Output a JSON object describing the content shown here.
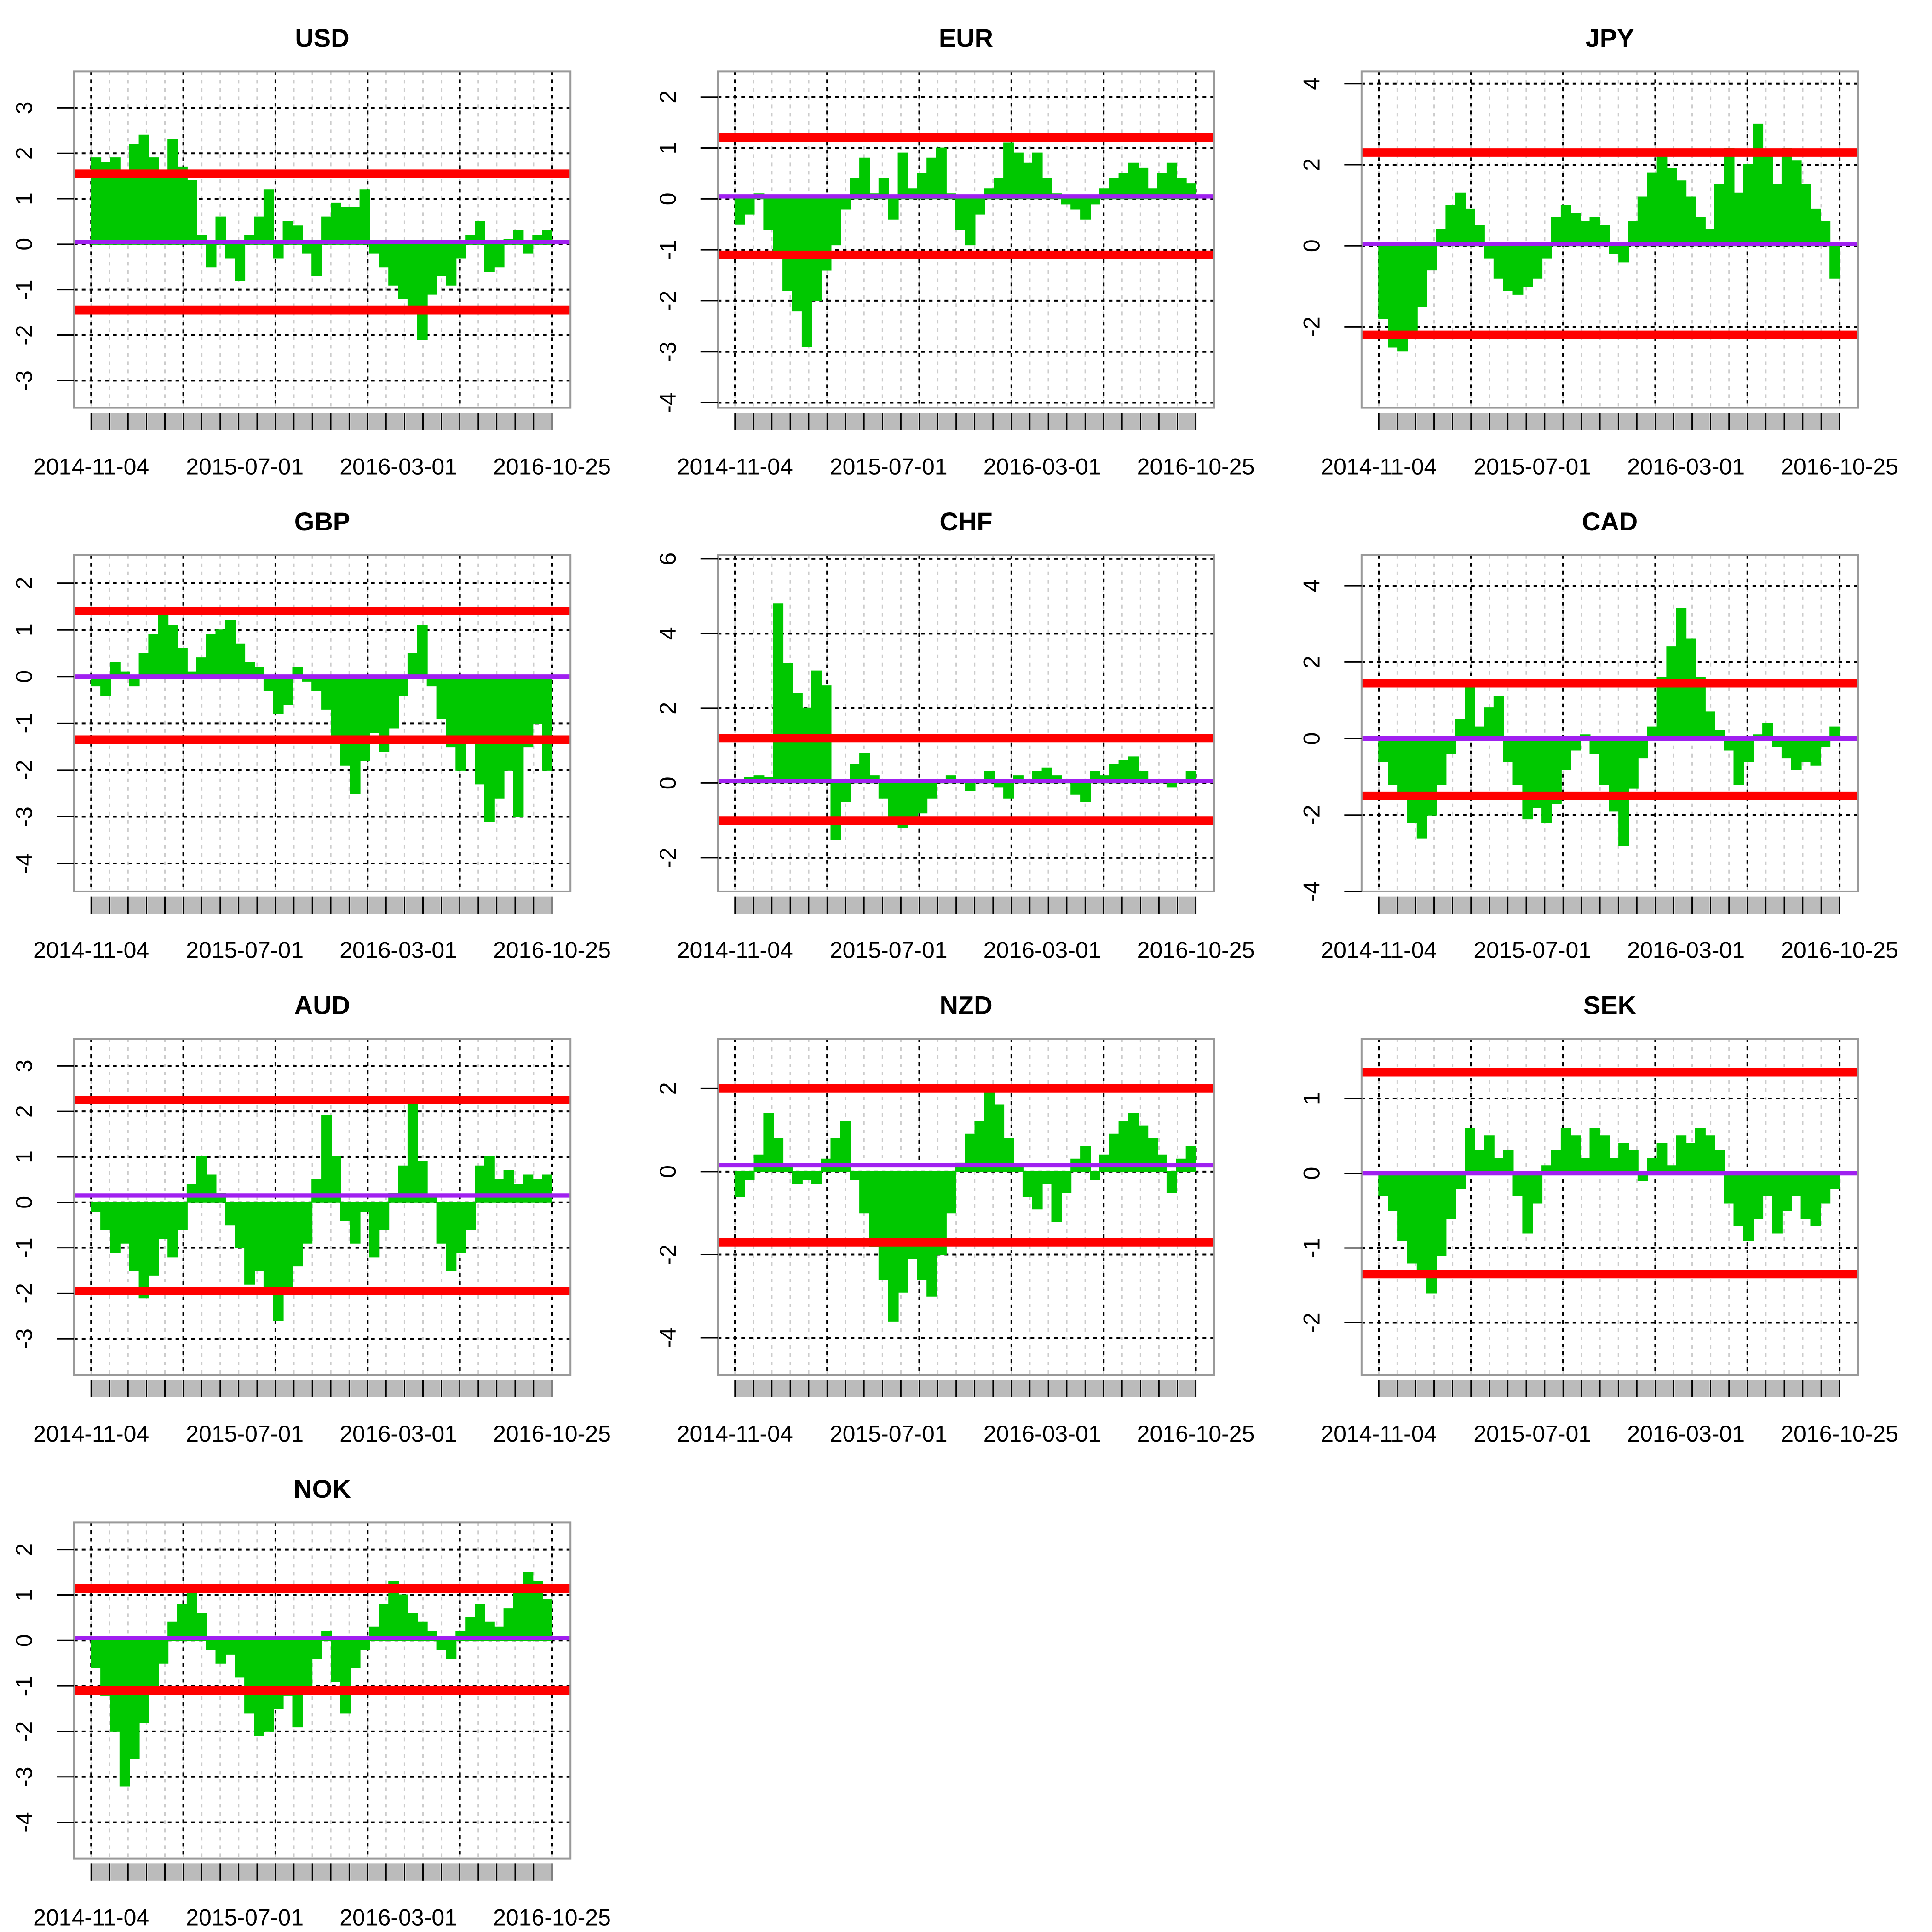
{
  "chart_data": [
    {
      "type": "area",
      "title": "USD",
      "x_tick_labels": [
        "2014-11-04",
        "2015-07-01",
        "2016-03-01",
        "2016-10-25"
      ],
      "y_ticks": [
        -3,
        -2,
        -1,
        0,
        1,
        2,
        3
      ],
      "ylim": [
        -3.6,
        3.8
      ],
      "grid": true,
      "reference_lines": {
        "upper": 1.55,
        "lower": -1.45,
        "mean": 0.05
      },
      "series": [
        {
          "values": [
            1.9,
            1.8,
            1.9,
            1.6,
            2.2,
            2.4,
            1.9,
            1.6,
            2.3,
            1.7,
            1.4,
            0.2,
            -0.5,
            0.6,
            -0.3,
            -0.8,
            0.2,
            0.6,
            1.2,
            -0.3,
            0.5,
            0.4,
            -0.2,
            -0.7,
            0.6,
            0.9,
            0.8,
            0.8,
            1.2,
            -0.2,
            -0.5,
            -0.9,
            -1.2,
            -1.4,
            -2.1,
            -1.1,
            -0.7,
            -0.9,
            -0.3,
            0.2,
            0.5,
            -0.6,
            -0.5,
            0.1,
            0.3,
            -0.2,
            0.2,
            0.3
          ]
        }
      ]
    },
    {
      "type": "area",
      "title": "EUR",
      "x_tick_labels": [
        "2014-11-04",
        "2015-07-01",
        "2016-03-01",
        "2016-10-25"
      ],
      "y_ticks": [
        -4,
        -3,
        -2,
        -1,
        0,
        1,
        2
      ],
      "ylim": [
        -4.1,
        2.5
      ],
      "grid": true,
      "reference_lines": {
        "upper": 1.2,
        "lower": -1.1,
        "mean": 0.05
      },
      "series": [
        {
          "values": [
            -0.5,
            -0.3,
            0.1,
            -0.6,
            -1.1,
            -1.8,
            -2.2,
            -2.9,
            -2.0,
            -1.4,
            -0.9,
            -0.2,
            0.4,
            0.8,
            0.1,
            0.4,
            -0.4,
            0.9,
            0.2,
            0.5,
            0.8,
            1.0,
            0.1,
            -0.6,
            -0.9,
            -0.3,
            0.2,
            0.4,
            1.1,
            0.9,
            0.7,
            0.9,
            0.4,
            0.1,
            -0.1,
            -0.2,
            -0.4,
            -0.1,
            0.2,
            0.4,
            0.5,
            0.7,
            0.6,
            0.2,
            0.5,
            0.7,
            0.4,
            0.3
          ]
        }
      ]
    },
    {
      "type": "area",
      "title": "JPY",
      "x_tick_labels": [
        "2014-11-04",
        "2015-07-01",
        "2016-03-01",
        "2016-10-25"
      ],
      "y_ticks": [
        -2,
        0,
        2,
        4
      ],
      "ylim": [
        -4.0,
        4.3
      ],
      "grid": true,
      "reference_lines": {
        "upper": 2.3,
        "lower": -2.2,
        "mean": 0.05
      },
      "series": [
        {
          "values": [
            -1.8,
            -2.5,
            -2.6,
            -2.2,
            -1.5,
            -0.6,
            0.4,
            1.0,
            1.3,
            0.9,
            0.5,
            -0.3,
            -0.8,
            -1.1,
            -1.2,
            -1.0,
            -0.8,
            -0.3,
            0.7,
            1.0,
            0.8,
            0.6,
            0.7,
            0.5,
            -0.2,
            -0.4,
            0.6,
            1.2,
            1.8,
            2.2,
            1.9,
            1.6,
            1.2,
            0.7,
            0.4,
            1.5,
            2.4,
            1.3,
            2.0,
            3.0,
            2.2,
            1.5,
            2.4,
            2.1,
            1.5,
            0.9,
            0.6,
            -0.8
          ]
        }
      ]
    },
    {
      "type": "area",
      "title": "GBP",
      "x_tick_labels": [
        "2014-11-04",
        "2015-07-01",
        "2016-03-01",
        "2016-10-25"
      ],
      "y_ticks": [
        -4,
        -3,
        -2,
        -1,
        0,
        1,
        2
      ],
      "ylim": [
        -4.6,
        2.6
      ],
      "grid": true,
      "reference_lines": {
        "upper": 1.4,
        "lower": -1.35,
        "mean": 0.0
      },
      "series": [
        {
          "values": [
            -0.2,
            -0.4,
            0.3,
            0.1,
            -0.2,
            0.5,
            0.9,
            1.3,
            1.1,
            0.6,
            0.1,
            0.4,
            0.9,
            1.0,
            1.2,
            0.7,
            0.3,
            0.2,
            -0.3,
            -0.8,
            -0.6,
            0.2,
            -0.1,
            -0.3,
            -0.7,
            -1.3,
            -1.9,
            -2.5,
            -1.8,
            -1.2,
            -1.6,
            -1.1,
            -0.4,
            0.5,
            1.1,
            -0.2,
            -0.9,
            -1.5,
            -2.0,
            -1.4,
            -2.3,
            -3.1,
            -2.6,
            -2.0,
            -3.0,
            -1.5,
            -1.0,
            -2.0
          ]
        }
      ]
    },
    {
      "type": "area",
      "title": "CHF",
      "x_tick_labels": [
        "2014-11-04",
        "2015-07-01",
        "2016-03-01",
        "2016-10-25"
      ],
      "y_ticks": [
        -2,
        0,
        2,
        4,
        6
      ],
      "ylim": [
        -2.9,
        6.1
      ],
      "grid": true,
      "reference_lines": {
        "upper": 1.2,
        "lower": -1.0,
        "mean": 0.05
      },
      "series": [
        {
          "values": [
            0.1,
            0.15,
            0.2,
            0.15,
            4.8,
            3.2,
            2.4,
            2.0,
            3.0,
            2.6,
            -1.5,
            -0.5,
            0.5,
            0.8,
            0.2,
            -0.4,
            -0.9,
            -1.2,
            -1.1,
            -0.8,
            -0.4,
            0.1,
            0.2,
            0.1,
            -0.2,
            0.1,
            0.3,
            -0.1,
            -0.4,
            0.2,
            0.1,
            0.3,
            0.4,
            0.2,
            0.1,
            -0.3,
            -0.5,
            0.3,
            0.2,
            0.5,
            0.6,
            0.7,
            0.3,
            0.1,
            0.0,
            -0.1,
            0.1,
            0.3
          ]
        }
      ]
    },
    {
      "type": "area",
      "title": "CAD",
      "x_tick_labels": [
        "2014-11-04",
        "2015-07-01",
        "2016-03-01",
        "2016-10-25"
      ],
      "y_ticks": [
        -4,
        -2,
        0,
        2,
        4
      ],
      "ylim": [
        -4.0,
        4.8
      ],
      "grid": true,
      "reference_lines": {
        "upper": 1.45,
        "lower": -1.5,
        "mean": 0.0
      },
      "series": [
        {
          "values": [
            -0.6,
            -1.2,
            -1.5,
            -2.2,
            -2.6,
            -2.0,
            -1.2,
            -0.4,
            0.5,
            1.4,
            0.3,
            0.8,
            1.1,
            -0.6,
            -1.2,
            -2.1,
            -1.8,
            -2.2,
            -1.7,
            -0.8,
            -0.3,
            0.1,
            -0.4,
            -1.2,
            -1.9,
            -2.8,
            -1.3,
            -0.5,
            0.3,
            1.6,
            2.4,
            3.4,
            2.6,
            1.6,
            0.7,
            0.2,
            -0.3,
            -1.2,
            -0.6,
            0.1,
            0.4,
            -0.2,
            -0.5,
            -0.8,
            -0.6,
            -0.7,
            -0.2,
            0.3
          ]
        }
      ]
    },
    {
      "type": "area",
      "title": "AUD",
      "x_tick_labels": [
        "2014-11-04",
        "2015-07-01",
        "2016-03-01",
        "2016-10-25"
      ],
      "y_ticks": [
        -3,
        -2,
        -1,
        0,
        1,
        2,
        3
      ],
      "ylim": [
        -3.8,
        3.6
      ],
      "grid": true,
      "reference_lines": {
        "upper": 2.25,
        "lower": -1.95,
        "mean": 0.15
      },
      "series": [
        {
          "values": [
            -0.2,
            -0.6,
            -1.1,
            -0.9,
            -1.5,
            -2.1,
            -1.6,
            -0.8,
            -1.2,
            -0.6,
            0.4,
            1.0,
            0.6,
            0.2,
            -0.5,
            -1.0,
            -1.8,
            -1.5,
            -2.0,
            -2.6,
            -1.9,
            -1.4,
            -0.9,
            0.5,
            1.9,
            1.0,
            -0.4,
            -0.9,
            -0.2,
            -1.2,
            -0.6,
            0.2,
            0.8,
            2.2,
            0.9,
            0.1,
            -0.9,
            -1.5,
            -1.1,
            -0.6,
            0.8,
            1.0,
            0.5,
            0.7,
            0.4,
            0.6,
            0.5,
            0.6
          ]
        }
      ]
    },
    {
      "type": "area",
      "title": "NZD",
      "x_tick_labels": [
        "2014-11-04",
        "2015-07-01",
        "2016-03-01",
        "2016-10-25"
      ],
      "y_ticks": [
        -4,
        -2,
        0,
        2
      ],
      "ylim": [
        -4.9,
        3.2
      ],
      "grid": true,
      "reference_lines": {
        "upper": 2.0,
        "lower": -1.7,
        "mean": 0.15
      },
      "series": [
        {
          "values": [
            -0.6,
            -0.2,
            0.4,
            1.4,
            0.8,
            0.1,
            -0.3,
            -0.2,
            -0.3,
            0.3,
            0.8,
            1.2,
            -0.2,
            -1.0,
            -1.8,
            -2.6,
            -3.6,
            -2.9,
            -2.1,
            -2.6,
            -3.0,
            -2.0,
            -1.0,
            0.2,
            0.9,
            1.2,
            1.9,
            1.6,
            0.8,
            0.1,
            -0.6,
            -0.9,
            -0.3,
            -1.2,
            -0.5,
            0.3,
            0.6,
            -0.2,
            0.4,
            0.9,
            1.2,
            1.4,
            1.1,
            0.8,
            0.4,
            -0.5,
            0.3,
            0.6
          ]
        }
      ]
    },
    {
      "type": "area",
      "title": "SEK",
      "x_tick_labels": [
        "2014-11-04",
        "2015-07-01",
        "2016-03-01",
        "2016-10-25"
      ],
      "y_ticks": [
        -2,
        -1,
        0,
        1
      ],
      "ylim": [
        -2.7,
        1.8
      ],
      "grid": true,
      "reference_lines": {
        "upper": 1.35,
        "lower": -1.35,
        "mean": 0.0
      },
      "series": [
        {
          "values": [
            -0.3,
            -0.5,
            -0.9,
            -1.2,
            -1.4,
            -1.6,
            -1.1,
            -0.6,
            -0.2,
            0.6,
            0.3,
            0.5,
            0.2,
            0.3,
            -0.3,
            -0.8,
            -0.4,
            0.1,
            0.3,
            0.6,
            0.5,
            0.2,
            0.6,
            0.5,
            0.2,
            0.4,
            0.3,
            -0.1,
            0.2,
            0.4,
            0.1,
            0.5,
            0.4,
            0.6,
            0.5,
            0.3,
            -0.4,
            -0.7,
            -0.9,
            -0.6,
            -0.3,
            -0.8,
            -0.5,
            -0.3,
            -0.6,
            -0.7,
            -0.4,
            -0.2
          ]
        }
      ]
    },
    {
      "type": "area",
      "title": "NOK",
      "x_tick_labels": [
        "2014-11-04",
        "2015-07-01",
        "2016-03-01",
        "2016-10-25"
      ],
      "y_ticks": [
        -4,
        -3,
        -2,
        -1,
        0,
        1,
        2
      ],
      "ylim": [
        -4.8,
        2.6
      ],
      "grid": true,
      "reference_lines": {
        "upper": 1.15,
        "lower": -1.1,
        "mean": 0.05
      },
      "series": [
        {
          "values": [
            -0.6,
            -1.2,
            -2.0,
            -3.2,
            -2.6,
            -1.8,
            -1.1,
            -0.5,
            0.4,
            0.8,
            1.1,
            0.6,
            -0.2,
            -0.5,
            -0.3,
            -0.8,
            -1.6,
            -2.1,
            -2.0,
            -1.5,
            -1.2,
            -1.9,
            -1.1,
            -0.4,
            0.2,
            -0.9,
            -1.6,
            -0.6,
            -0.2,
            0.3,
            0.8,
            1.3,
            1.0,
            0.6,
            0.4,
            0.2,
            -0.2,
            -0.4,
            0.2,
            0.5,
            0.8,
            0.4,
            0.3,
            0.7,
            1.1,
            1.5,
            1.3,
            0.9
          ]
        }
      ]
    }
  ]
}
